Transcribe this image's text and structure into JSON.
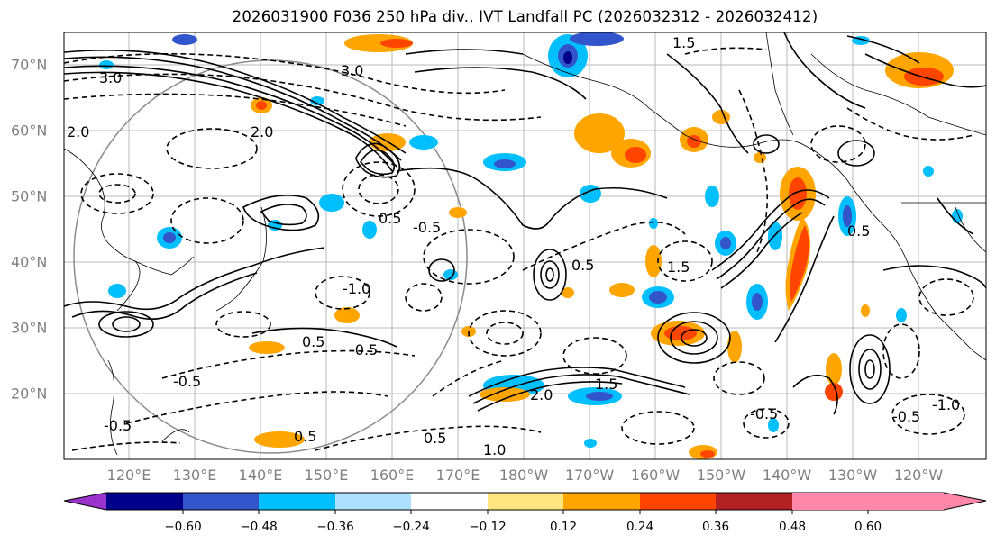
{
  "title": "2026031900 F036 250 hPa div., IVT Landfall PC (2026032312 - 2026032412)",
  "axes": {
    "lat_labels": [
      "70°N",
      "60°N",
      "50°N",
      "40°N",
      "30°N",
      "20°N"
    ],
    "lon_labels": [
      "120°E",
      "130°E",
      "140°E",
      "150°E",
      "160°E",
      "170°E",
      "180°W",
      "170°W",
      "160°W",
      "150°W",
      "140°W",
      "130°W",
      "120°W"
    ]
  },
  "contour_labels": [
    "3.0",
    "3.0",
    "2.0",
    "2.0",
    "1.5",
    "0.5",
    "-0.5",
    "0.5",
    "-0.5",
    "-0.5",
    "-0.5",
    "0.5",
    "0.5",
    "1.0",
    "-0.5",
    "-1.0",
    "-0.5",
    "1.5",
    "0.5",
    "2.0",
    "1.5",
    "0.5",
    "-1.0"
  ],
  "colorbar": {
    "ticks": [
      "−0.60",
      "−0.48",
      "−0.36",
      "−0.24",
      "−0.12",
      "0.12",
      "0.24",
      "0.36",
      "0.48",
      "0.60"
    ],
    "colors": [
      "#9933cc",
      "#00008b",
      "#3355cc",
      "#00bfff",
      "#aee0ff",
      "#ffffff",
      "#ffe680",
      "#ffa500",
      "#ff4500",
      "#b22222",
      "#ff88aa"
    ]
  }
}
